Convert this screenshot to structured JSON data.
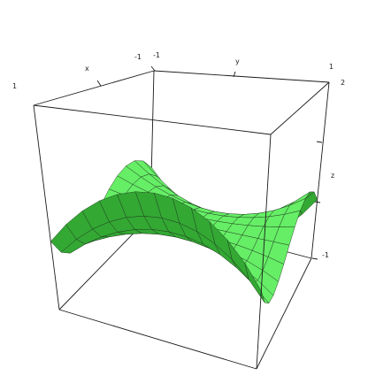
{
  "chart_data": {
    "type": "surface",
    "function": "z = x^3 - x*y^2",
    "x_range": [
      -1,
      1
    ],
    "y_range": [
      -1,
      1
    ],
    "z_range": [
      -1,
      2
    ],
    "grid_divisions": 12,
    "labels": {
      "x_axis": "x",
      "y_axis": "y",
      "z_axis": "z",
      "x_tick_left": "1",
      "x_tick_right": "-1",
      "y_tick_left": "-1",
      "y_tick_right": "1",
      "z_tick_top": "2",
      "z_tick_bottom": "-1"
    },
    "colors": {
      "top_face": "#33a833",
      "bottom_face": "#66ee66",
      "mesh_line": "#1f3a1f"
    }
  }
}
